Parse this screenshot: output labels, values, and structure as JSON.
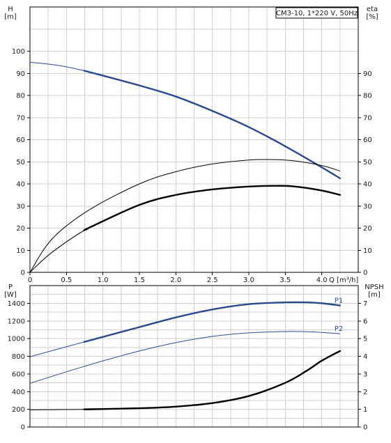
{
  "chart_data": [
    {
      "type": "line",
      "id": "top",
      "title": "CM3-10, 1*220 V, 50Hz",
      "xlabel": "Q [m³/h]",
      "ylabel_left": "H\n[m]",
      "ylabel_right": "eta\n[%]",
      "xlim": [
        0,
        4.5
      ],
      "ylim_left": [
        0,
        120
      ],
      "ylim_right": [
        0,
        120
      ],
      "x_ticks": [
        "0",
        "0.5",
        "1.0",
        "1.5",
        "2.0",
        "2.5",
        "3.0",
        "3.5",
        "4.0"
      ],
      "y_ticks_left": [
        "0",
        "10",
        "20",
        "30",
        "40",
        "50",
        "60",
        "70",
        "80",
        "90",
        "100"
      ],
      "y_ticks_right": [
        "0",
        "10",
        "20",
        "30",
        "40",
        "50",
        "60",
        "70",
        "80",
        "90"
      ],
      "grid": true,
      "series": [
        {
          "role": "head",
          "color": "#2b4a8c",
          "axis": "left",
          "x": [
            0,
            0.4,
            0.8,
            1.5,
            2.0,
            2.5,
            3.0,
            3.5,
            4.0,
            4.25
          ],
          "y": [
            95,
            93.5,
            90.7,
            84.5,
            79.5,
            73,
            65.7,
            57,
            47.5,
            42.5
          ],
          "bold_from": 0.78
        },
        {
          "role": "eta",
          "color": "#000000",
          "axis": "right",
          "x": [
            0,
            0.3,
            0.8,
            1.5,
            2.0,
            2.5,
            3.0,
            3.3,
            3.6,
            4.0,
            4.25
          ],
          "y": [
            0,
            15,
            28,
            40,
            45.5,
            49,
            50.8,
            51,
            50.5,
            48.3,
            45.8
          ],
          "bold_from": 99
        },
        {
          "role": "eta_p1",
          "color": "#000000",
          "axis": "right",
          "x": [
            0,
            0.3,
            0.8,
            1.5,
            2.0,
            2.5,
            3.0,
            3.3,
            3.6,
            4.0,
            4.25
          ],
          "y": [
            0,
            9,
            20,
            30.5,
            35,
            37.5,
            38.8,
            39.1,
            38.9,
            37,
            35
          ],
          "bold_from": 0.78
        }
      ]
    },
    {
      "type": "line",
      "id": "bottom",
      "xlabel": "",
      "ylabel_left": "P\n[W]",
      "ylabel_right": "NPSH\n[m]",
      "xlim": [
        0,
        4.5
      ],
      "ylim_left": [
        0,
        1600
      ],
      "ylim_right": [
        0,
        8
      ],
      "y_ticks_left": [
        "0",
        "200",
        "400",
        "600",
        "800",
        "1000",
        "1200",
        "1400"
      ],
      "y_ticks_right": [
        "0",
        "1",
        "2",
        "3",
        "4",
        "5",
        "6",
        "7"
      ],
      "grid": true,
      "series": [
        {
          "name": "P1",
          "color": "#2b4a8c",
          "axis": "left",
          "x": [
            0,
            0.8,
            1.5,
            2.0,
            2.5,
            3.0,
            3.5,
            3.8,
            4.0,
            4.25
          ],
          "y": [
            795,
            975,
            1130,
            1240,
            1330,
            1390,
            1410,
            1410,
            1400,
            1375
          ],
          "bold_from": 0.78
        },
        {
          "name": "P2",
          "color": "#2b4a8c",
          "axis": "left",
          "x": [
            0,
            0.8,
            1.5,
            2.0,
            2.5,
            3.0,
            3.5,
            3.8,
            4.0,
            4.25
          ],
          "y": [
            495,
            700,
            860,
            955,
            1025,
            1065,
            1080,
            1078,
            1070,
            1055
          ],
          "bold_from": 99
        },
        {
          "name": "",
          "role": "npsh",
          "color": "#000000",
          "axis": "right",
          "x": [
            0,
            0.8,
            1.5,
            2.0,
            2.5,
            3.0,
            3.5,
            3.8,
            4.0,
            4.25
          ],
          "y": [
            0.97,
            1.0,
            1.06,
            1.15,
            1.35,
            1.75,
            2.5,
            3.2,
            3.75,
            4.3
          ],
          "bold_from": 0.78
        }
      ]
    }
  ]
}
